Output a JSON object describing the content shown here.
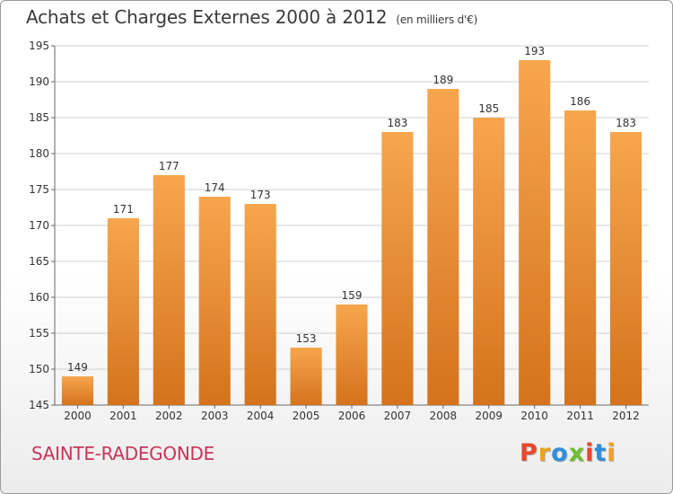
{
  "header": {
    "title": "Achats et Charges Externes 2000 à 2012",
    "subtitle": "(en milliers d'€)"
  },
  "footer": {
    "place": "SAINTE-RADEGONDE",
    "logo": "Proxiti"
  },
  "colors": {
    "bar_light": "#f7a64e",
    "bar_dark": "#d4731c",
    "grid": "#d0d0d0",
    "place_text": "#c8345a",
    "logo_letters": [
      "#e8472b",
      "#f0a020",
      "#2f8fd8",
      "#6cbf2e",
      "#e8472b",
      "#2f8fd8",
      "#f0a020"
    ]
  },
  "chart_data": {
    "type": "bar",
    "title": "Achats et Charges Externes 2000 à 2012",
    "subtitle": "(en milliers d'€)",
    "xlabel": "",
    "ylabel": "",
    "categories": [
      "2000",
      "2001",
      "2002",
      "2003",
      "2004",
      "2005",
      "2006",
      "2007",
      "2008",
      "2009",
      "2010",
      "2011",
      "2012"
    ],
    "values": [
      149,
      171,
      177,
      174,
      173,
      153,
      159,
      183,
      189,
      185,
      193,
      186,
      183
    ],
    "ylim": [
      145,
      195
    ],
    "yticks": [
      145,
      150,
      155,
      160,
      165,
      170,
      175,
      180,
      185,
      190,
      195
    ],
    "grid": true,
    "legend": "none"
  }
}
